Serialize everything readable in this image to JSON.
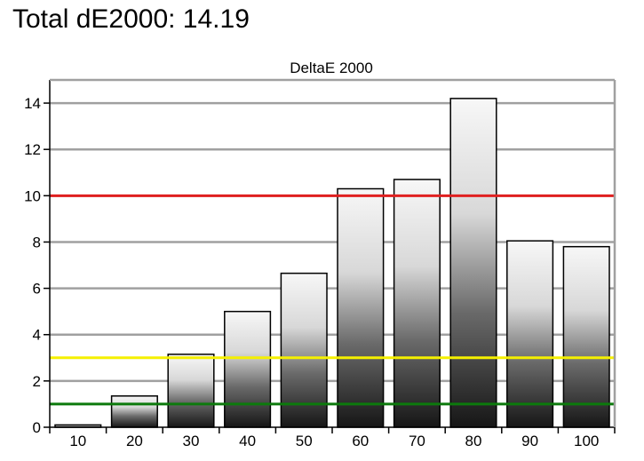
{
  "page": {
    "title": "Total dE2000: 14.19"
  },
  "chart_data": {
    "type": "bar",
    "title": "DeltaE 2000",
    "xlabel": "",
    "ylabel": "",
    "categories": [
      "10",
      "20",
      "30",
      "40",
      "50",
      "60",
      "70",
      "80",
      "90",
      "100"
    ],
    "values": [
      0.1,
      1.35,
      3.15,
      5.0,
      6.65,
      10.3,
      10.7,
      14.2,
      8.05,
      7.8
    ],
    "ylim": [
      0,
      15
    ],
    "yticks": [
      0,
      2,
      4,
      6,
      8,
      10,
      12,
      14
    ],
    "grid": true,
    "legend": "none",
    "thresholds": [
      {
        "value": 10.0,
        "color": "#e02020"
      },
      {
        "value": 3.0,
        "color": "#f5f000"
      },
      {
        "value": 1.0,
        "color": "#0c7a0c"
      }
    ],
    "colors": {
      "bar_outline": "#000000",
      "grid": "#a0a0a0",
      "frame": "#a0a0a0"
    }
  }
}
